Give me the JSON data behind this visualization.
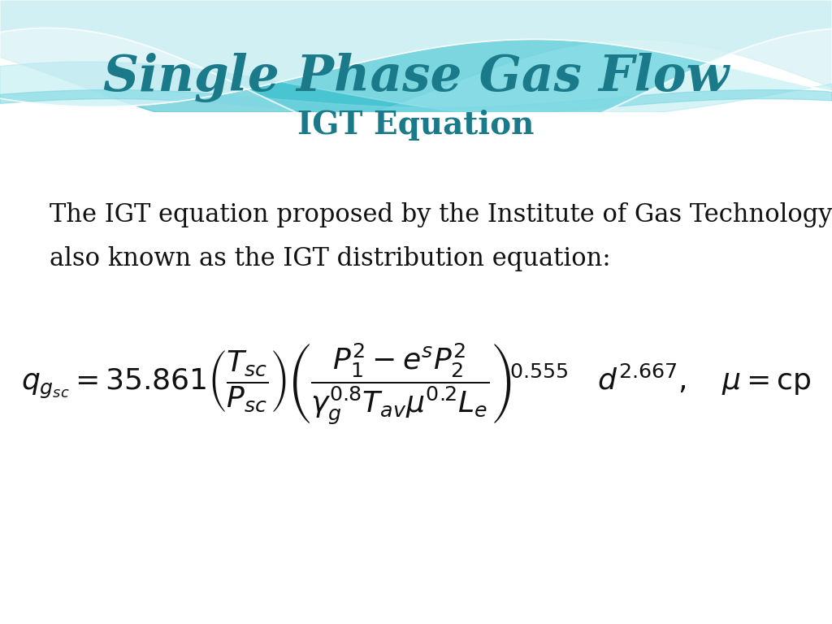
{
  "title_main": "Single Phase Gas Flow",
  "title_sub": "IGT Equation",
  "title_main_color": "#1a7a8a",
  "title_sub_color": "#1a7a8a",
  "body_text_line1": "The IGT equation proposed by the Institute of Gas Technology is",
  "body_text_line2": "also known as the IGT distribution equation:",
  "body_text_color": "#111111",
  "body_fontsize": 22,
  "equation_color": "#111111",
  "wave_color1": "#6dd4de",
  "wave_color2": "#3ab8c8",
  "wave_color3": "#aee8ef"
}
